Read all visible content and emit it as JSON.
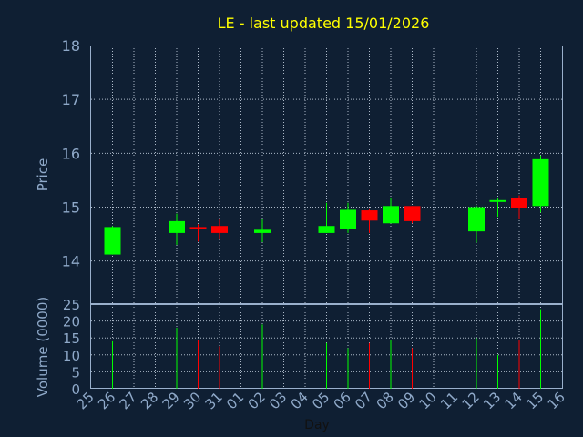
{
  "title": "LE - last updated 15/01/2026",
  "colors": {
    "background": "#0f1f33",
    "title": "#ffff00",
    "axis_text": "#8fa9c9",
    "up": "#00ff00",
    "down": "#ff0000"
  },
  "chart_data": [
    {
      "type": "candlestick",
      "ylabel": "Price",
      "ylim": [
        13.2,
        18
      ],
      "yticks": [
        14,
        15,
        16,
        17,
        18
      ],
      "grid": true,
      "x_labels": [
        "25",
        "26",
        "27",
        "28",
        "29",
        "30",
        "31",
        "01",
        "02",
        "03",
        "04",
        "05",
        "06",
        "07",
        "08",
        "09",
        "10",
        "11",
        "12",
        "13",
        "14",
        "15",
        "16"
      ],
      "candles": [
        {
          "day": "26",
          "open": 14.12,
          "high": 14.65,
          "low": 14.12,
          "close": 14.63
        },
        {
          "day": "29",
          "open": 14.52,
          "high": 14.88,
          "low": 14.3,
          "close": 14.74
        },
        {
          "day": "30",
          "open": 14.63,
          "high": 14.68,
          "low": 14.36,
          "close": 14.6
        },
        {
          "day": "31",
          "open": 14.65,
          "high": 14.78,
          "low": 14.4,
          "close": 14.52
        },
        {
          "day": "02",
          "open": 14.52,
          "high": 14.78,
          "low": 14.35,
          "close": 14.58
        },
        {
          "day": "05",
          "open": 14.52,
          "high": 15.08,
          "low": 14.52,
          "close": 14.65
        },
        {
          "day": "06",
          "open": 14.59,
          "high": 15.08,
          "low": 14.52,
          "close": 14.95
        },
        {
          "day": "07",
          "open": 14.94,
          "high": 14.96,
          "low": 14.52,
          "close": 14.75
        },
        {
          "day": "08",
          "open": 14.7,
          "high": 15.16,
          "low": 14.7,
          "close": 15.02
        },
        {
          "day": "09",
          "open": 15.02,
          "high": 15.02,
          "low": 14.7,
          "close": 14.74
        },
        {
          "day": "12",
          "open": 14.55,
          "high": 15.03,
          "low": 14.34,
          "close": 15.0
        },
        {
          "day": "13",
          "open": 15.1,
          "high": 15.17,
          "low": 14.82,
          "close": 15.13
        },
        {
          "day": "14",
          "open": 15.17,
          "high": 15.22,
          "low": 14.78,
          "close": 14.98
        },
        {
          "day": "15",
          "open": 15.02,
          "high": 15.96,
          "low": 14.9,
          "close": 15.89
        }
      ]
    },
    {
      "type": "bar",
      "ylabel": "Volume (0000)",
      "xlabel": "Day",
      "ylim": [
        0,
        25
      ],
      "yticks": [
        0,
        5,
        10,
        15,
        20,
        25
      ],
      "grid": true,
      "bars": [
        {
          "day": "26",
          "value": 14,
          "direction": "up"
        },
        {
          "day": "29",
          "value": 18,
          "direction": "up"
        },
        {
          "day": "30",
          "value": 14.5,
          "direction": "down"
        },
        {
          "day": "31",
          "value": 12.5,
          "direction": "down"
        },
        {
          "day": "02",
          "value": 19,
          "direction": "up"
        },
        {
          "day": "05",
          "value": 13.5,
          "direction": "up"
        },
        {
          "day": "06",
          "value": 12,
          "direction": "up"
        },
        {
          "day": "07",
          "value": 13.5,
          "direction": "down"
        },
        {
          "day": "08",
          "value": 14.5,
          "direction": "up"
        },
        {
          "day": "09",
          "value": 12,
          "direction": "down"
        },
        {
          "day": "12",
          "value": 15,
          "direction": "up"
        },
        {
          "day": "13",
          "value": 10,
          "direction": "up"
        },
        {
          "day": "14",
          "value": 14.5,
          "direction": "down"
        },
        {
          "day": "15",
          "value": 23.5,
          "direction": "up"
        }
      ]
    }
  ]
}
